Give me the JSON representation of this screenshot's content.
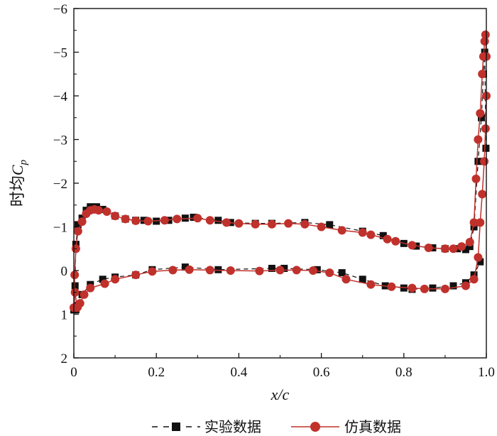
{
  "chart_data": {
    "type": "line",
    "xlabel": "x/c",
    "ylabel_prefix": "时均",
    "ylabel_symbol": "C",
    "ylabel_subscript": "p",
    "xlim": [
      0,
      1.0
    ],
    "ylim": [
      -6,
      2
    ],
    "y_inverted": true,
    "grid": false,
    "legend_position": "bottom",
    "x_ticks": [
      0,
      0.2,
      0.4,
      0.6,
      0.8,
      1.0
    ],
    "x_tick_labels": [
      "0",
      "0.2",
      "0.4",
      "0.6",
      "0.8",
      "1.0"
    ],
    "y_ticks": [
      -6,
      -5,
      -4,
      -3,
      -2,
      -1,
      0,
      1,
      2
    ],
    "y_tick_labels": [
      "−6",
      "−5",
      "−4",
      "−3",
      "−2",
      "−1",
      "0",
      "1",
      "2"
    ],
    "series": [
      {
        "name": "实验数据",
        "color": "#111111",
        "line_style": "dashed",
        "marker": "square",
        "upper": [
          [
            0.0,
            0.9
          ],
          [
            0.003,
            0.35
          ],
          [
            0.005,
            -0.6
          ],
          [
            0.01,
            -1.05
          ],
          [
            0.02,
            -1.2
          ],
          [
            0.03,
            -1.38
          ],
          [
            0.04,
            -1.46
          ],
          [
            0.055,
            -1.46
          ],
          [
            0.07,
            -1.4
          ],
          [
            0.1,
            -1.25
          ],
          [
            0.125,
            -1.18
          ],
          [
            0.15,
            -1.15
          ],
          [
            0.17,
            -1.15
          ],
          [
            0.2,
            -1.13
          ],
          [
            0.23,
            -1.15
          ],
          [
            0.27,
            -1.2
          ],
          [
            0.29,
            -1.22
          ],
          [
            0.35,
            -1.15
          ],
          [
            0.38,
            -1.1
          ],
          [
            0.44,
            -1.08
          ],
          [
            0.48,
            -1.08
          ],
          [
            0.56,
            -1.1
          ],
          [
            0.62,
            -1.05
          ],
          [
            0.7,
            -0.9
          ],
          [
            0.75,
            -0.8
          ],
          [
            0.8,
            -0.62
          ],
          [
            0.83,
            -0.56
          ],
          [
            0.87,
            -0.52
          ],
          [
            0.9,
            -0.5
          ],
          [
            0.93,
            -0.5
          ],
          [
            0.95,
            -0.48
          ],
          [
            0.96,
            -0.55
          ],
          [
            0.97,
            -1.0
          ],
          [
            0.98,
            -2.5
          ],
          [
            0.988,
            -3.5
          ],
          [
            0.993,
            -4.5
          ],
          [
            0.996,
            -5.0
          ],
          [
            0.999,
            -2.8
          ]
        ],
        "lower": [
          [
            0.0,
            0.9
          ],
          [
            0.005,
            0.9
          ],
          [
            0.01,
            0.8
          ],
          [
            0.02,
            0.55
          ],
          [
            0.04,
            0.32
          ],
          [
            0.07,
            0.2
          ],
          [
            0.1,
            0.15
          ],
          [
            0.15,
            0.1
          ],
          [
            0.19,
            -0.02
          ],
          [
            0.27,
            -0.08
          ],
          [
            0.35,
            -0.02
          ],
          [
            0.48,
            -0.05
          ],
          [
            0.51,
            -0.05
          ],
          [
            0.59,
            -0.02
          ],
          [
            0.65,
            0.05
          ],
          [
            0.7,
            0.2
          ],
          [
            0.755,
            0.35
          ],
          [
            0.8,
            0.4
          ],
          [
            0.82,
            0.43
          ],
          [
            0.87,
            0.4
          ],
          [
            0.92,
            0.35
          ],
          [
            0.95,
            0.28
          ],
          [
            0.97,
            0.1
          ],
          [
            0.985,
            -0.2
          ]
        ]
      },
      {
        "name": "仿真数据",
        "color": "#c0312c",
        "line_style": "solid",
        "marker": "circle",
        "upper": [
          [
            0.0,
            0.85
          ],
          [
            0.002,
            0.1
          ],
          [
            0.005,
            -0.5
          ],
          [
            0.01,
            -0.9
          ],
          [
            0.02,
            -1.12
          ],
          [
            0.03,
            -1.3
          ],
          [
            0.04,
            -1.38
          ],
          [
            0.05,
            -1.4
          ],
          [
            0.06,
            -1.38
          ],
          [
            0.08,
            -1.35
          ],
          [
            0.1,
            -1.25
          ],
          [
            0.125,
            -1.18
          ],
          [
            0.15,
            -1.14
          ],
          [
            0.18,
            -1.13
          ],
          [
            0.22,
            -1.15
          ],
          [
            0.25,
            -1.18
          ],
          [
            0.3,
            -1.2
          ],
          [
            0.33,
            -1.15
          ],
          [
            0.37,
            -1.1
          ],
          [
            0.4,
            -1.08
          ],
          [
            0.44,
            -1.06
          ],
          [
            0.48,
            -1.06
          ],
          [
            0.52,
            -1.08
          ],
          [
            0.56,
            -1.06
          ],
          [
            0.6,
            -1.0
          ],
          [
            0.65,
            -0.92
          ],
          [
            0.7,
            -0.87
          ],
          [
            0.72,
            -0.82
          ],
          [
            0.76,
            -0.72
          ],
          [
            0.78,
            -0.67
          ],
          [
            0.82,
            -0.58
          ],
          [
            0.86,
            -0.52
          ],
          [
            0.9,
            -0.5
          ],
          [
            0.92,
            -0.5
          ],
          [
            0.94,
            -0.55
          ],
          [
            0.96,
            -0.65
          ],
          [
            0.97,
            -1.1
          ],
          [
            0.975,
            -2.1
          ],
          [
            0.98,
            -3.0
          ],
          [
            0.985,
            -3.6
          ],
          [
            0.99,
            -4.5
          ],
          [
            0.993,
            -4.9
          ],
          [
            0.996,
            -5.25
          ],
          [
            0.998,
            -5.4
          ],
          [
            1.0,
            -4.9
          ]
        ],
        "lower": [
          [
            0.0,
            0.85
          ],
          [
            0.003,
            0.5
          ],
          [
            0.008,
            0.85
          ],
          [
            0.015,
            0.75
          ],
          [
            0.025,
            0.55
          ],
          [
            0.04,
            0.4
          ],
          [
            0.075,
            0.3
          ],
          [
            0.1,
            0.2
          ],
          [
            0.15,
            0.1
          ],
          [
            0.19,
            0.02
          ],
          [
            0.24,
            -0.01
          ],
          [
            0.28,
            -0.02
          ],
          [
            0.33,
            -0.01
          ],
          [
            0.38,
            0.0
          ],
          [
            0.45,
            0.01
          ],
          [
            0.5,
            -0.01
          ],
          [
            0.54,
            -0.01
          ],
          [
            0.58,
            0.0
          ],
          [
            0.62,
            0.05
          ],
          [
            0.66,
            0.2
          ],
          [
            0.72,
            0.32
          ],
          [
            0.77,
            0.37
          ],
          [
            0.82,
            0.4
          ],
          [
            0.85,
            0.42
          ],
          [
            0.9,
            0.42
          ],
          [
            0.95,
            0.35
          ],
          [
            0.97,
            0.2
          ],
          [
            0.98,
            -0.3
          ],
          [
            0.985,
            -1.1
          ],
          [
            0.99,
            -1.75
          ],
          [
            0.995,
            -2.5
          ],
          [
            0.998,
            -3.25
          ],
          [
            1.0,
            -4.0
          ]
        ]
      }
    ]
  }
}
